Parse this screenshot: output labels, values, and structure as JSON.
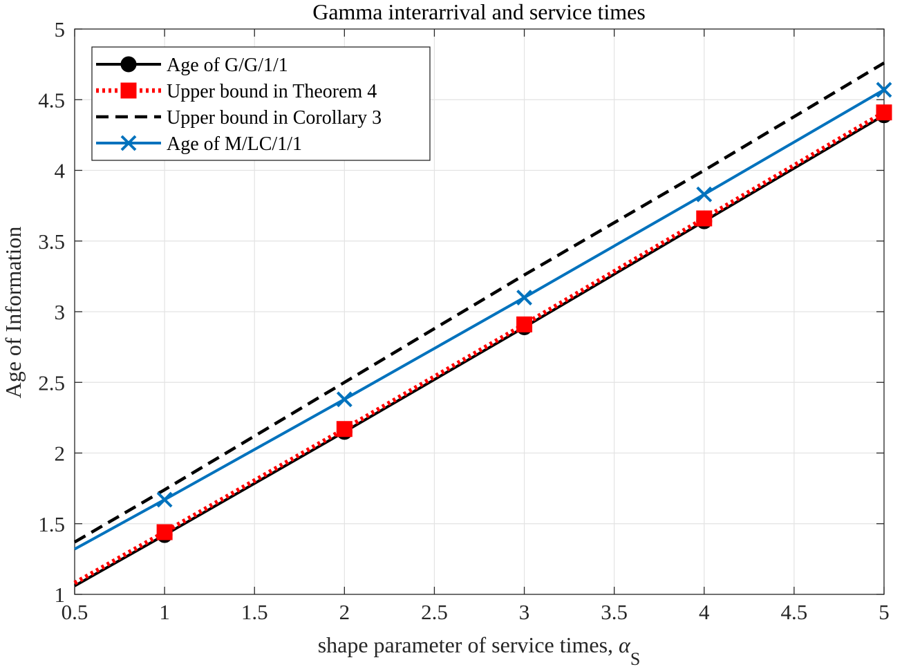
{
  "chart_data": {
    "type": "line",
    "title": "Gamma interarrival and service times",
    "xlabel": "shape parameter of service times, ",
    "xlabel_symbol": "α",
    "xlabel_subscript": "S",
    "ylabel": "Age of Information",
    "xlim": [
      0.5,
      5
    ],
    "ylim": [
      1,
      5
    ],
    "xticks": [
      0.5,
      1,
      1.5,
      2,
      2.5,
      3,
      3.5,
      4,
      4.5,
      5
    ],
    "yticks": [
      1,
      1.5,
      2,
      2.5,
      3,
      3.5,
      4,
      4.5,
      5
    ],
    "xtick_labels": [
      "0.5",
      "1",
      "1.5",
      "2",
      "2.5",
      "3",
      "3.5",
      "4",
      "4.5",
      "5"
    ],
    "ytick_labels": [
      "1",
      "1.5",
      "2",
      "2.5",
      "3",
      "3.5",
      "4",
      "4.5",
      "5"
    ],
    "grid": true,
    "legend_position": "top-left",
    "series": [
      {
        "name": "Age of G/G/1/1",
        "color": "#000000",
        "line_style": "solid",
        "marker": "circle",
        "x": [
          0.5,
          1,
          2,
          3,
          4,
          5
        ],
        "y": [
          1.06,
          1.42,
          2.15,
          2.89,
          3.64,
          4.39
        ],
        "marker_x": [
          1,
          2,
          3,
          4,
          5
        ]
      },
      {
        "name": "Upper bound in Theorem 4",
        "color": "#ff0000",
        "line_style": "dotted",
        "marker": "square",
        "x": [
          0.5,
          1,
          2,
          3,
          4,
          5
        ],
        "y": [
          1.08,
          1.44,
          2.17,
          2.91,
          3.66,
          4.41
        ],
        "marker_x": [
          1,
          2,
          3,
          4,
          5
        ]
      },
      {
        "name": "Upper bound in Corollary 3",
        "color": "#000000",
        "line_style": "dashed",
        "marker": "none",
        "x": [
          0.5,
          1,
          2,
          3,
          4,
          5
        ],
        "y": [
          1.37,
          1.74,
          2.5,
          3.26,
          4.0,
          4.76
        ],
        "marker_x": []
      },
      {
        "name": "Age of M/LC/1/1",
        "color": "#0072bd",
        "line_style": "solid",
        "marker": "x",
        "x": [
          0.5,
          1,
          2,
          3,
          4,
          5
        ],
        "y": [
          1.32,
          1.67,
          2.38,
          3.1,
          3.83,
          4.57
        ],
        "marker_x": [
          1,
          2,
          3,
          4,
          5
        ]
      }
    ]
  }
}
